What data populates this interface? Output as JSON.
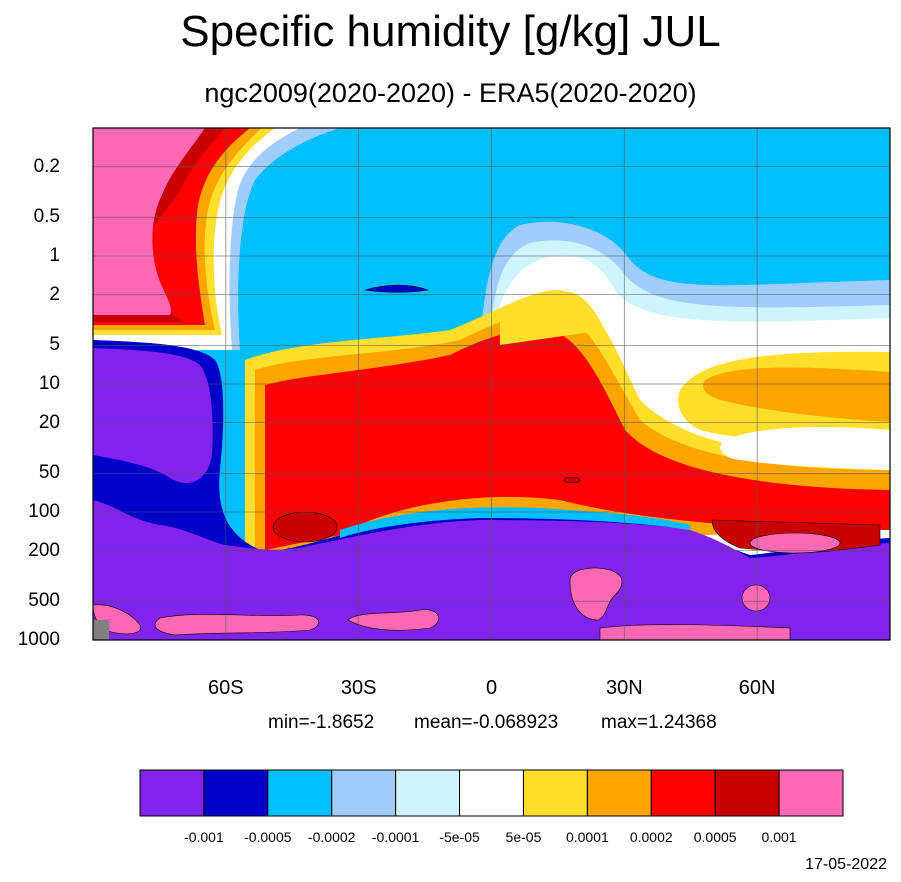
{
  "chart_data": {
    "type": "heatmap",
    "title": "Specific humidity [g/kg] JUL",
    "subtitle": "ngc2009(2020-2020) - ERA5(2020-2020)",
    "x_ticks": [
      "60S",
      "30S",
      "0",
      "30N",
      "60N"
    ],
    "x_tick_values": [
      -60,
      -30,
      0,
      30,
      60
    ],
    "x_range": [
      -90,
      90
    ],
    "y_ticks": [
      "0.2",
      "0.5",
      "1",
      "2",
      "5",
      "10",
      "20",
      "50",
      "100",
      "200",
      "500",
      "1000"
    ],
    "y_scale": "log",
    "y_range": [
      0.1,
      1000
    ],
    "grid": true,
    "stats": {
      "min": "min=-1.8652",
      "mean": "mean=-0.068923",
      "max": "max=1.24368"
    },
    "colorbar": {
      "labels": [
        "-0.001",
        "-0.0005",
        "-0.0002",
        "-0.0001",
        "-5e-05",
        "5e-05",
        "0.0001",
        "0.0002",
        "0.0005",
        "0.001"
      ],
      "colors": [
        "#8123ec",
        "#0000c8",
        "#00bfff",
        "#a1cdfd",
        "#d0f4fe",
        "#ffffff",
        "#ffdf2c",
        "#ffa500",
        "#ff0000",
        "#c80000",
        "#ff69b4"
      ]
    },
    "date": "17-05-2022"
  }
}
